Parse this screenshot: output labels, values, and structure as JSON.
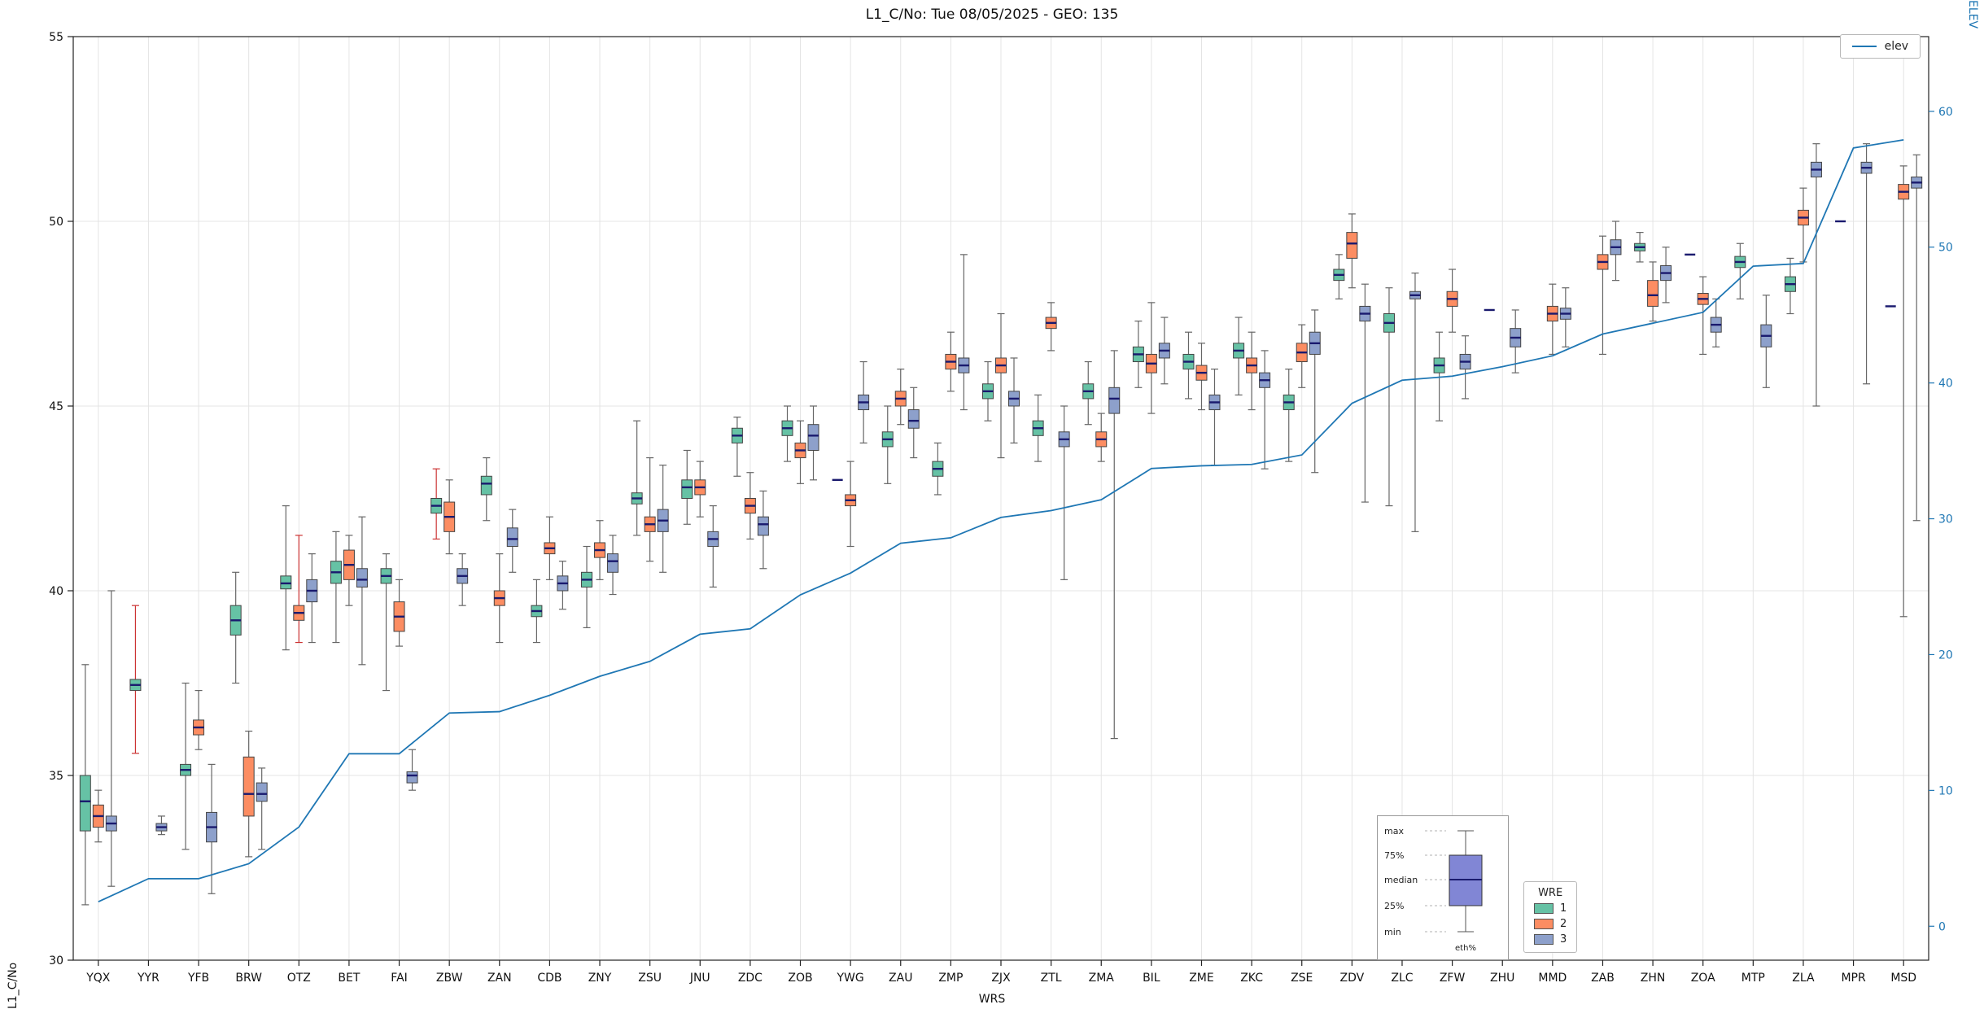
{
  "chart_data": {
    "type": "boxplot",
    "title": "L1_C/No: Tue 08/05/2025 - GEO: 135",
    "xlabel": "WRS",
    "ylabel": "L1_C/No",
    "ylabel_right": "ELEV",
    "ylim": [
      30,
      55
    ],
    "yticks": [
      30,
      35,
      40,
      45,
      50,
      55
    ],
    "ylim_right": [
      -2.5,
      65.5
    ],
    "yticks_right": [
      0,
      10,
      20,
      30,
      40,
      50,
      60
    ],
    "grid": true,
    "categories": [
      "YQX",
      "YYR",
      "YFB",
      "BRW",
      "OTZ",
      "BET",
      "FAI",
      "ZBW",
      "ZAN",
      "CDB",
      "ZNY",
      "ZSU",
      "JNU",
      "ZDC",
      "ZOB",
      "YWG",
      "ZAU",
      "ZMP",
      "ZJX",
      "ZTL",
      "ZMA",
      "BIL",
      "ZME",
      "ZKC",
      "ZSE",
      "ZDV",
      "ZLC",
      "ZFW",
      "ZHU",
      "MMD",
      "ZAB",
      "ZHN",
      "ZOA",
      "MTP",
      "ZLA",
      "MPR",
      "MSD"
    ],
    "series": [
      {
        "name": "1",
        "color": "#66c2a5",
        "boxes": [
          [
            31.5,
            33.5,
            34.3,
            35.0,
            38.0
          ],
          [
            35.6,
            37.3,
            37.45,
            37.6,
            39.6
          ],
          [
            33.0,
            35.0,
            35.15,
            35.3,
            37.5
          ],
          [
            37.5,
            38.8,
            39.2,
            39.6,
            40.5
          ],
          [
            38.4,
            40.05,
            40.2,
            40.4,
            42.3
          ],
          [
            38.6,
            40.2,
            40.5,
            40.8,
            41.6
          ],
          [
            37.3,
            40.2,
            40.4,
            40.6,
            41.0
          ],
          [
            41.4,
            42.1,
            42.3,
            42.5,
            43.3
          ],
          [
            41.9,
            42.6,
            42.9,
            43.1,
            43.6
          ],
          [
            38.6,
            39.3,
            39.45,
            39.6,
            40.3
          ],
          [
            39.0,
            40.1,
            40.3,
            40.5,
            41.2
          ],
          [
            41.5,
            42.35,
            42.5,
            42.65,
            44.6
          ],
          [
            41.8,
            42.5,
            42.8,
            43.0,
            43.8
          ],
          [
            43.1,
            44.0,
            44.2,
            44.4,
            44.7
          ],
          [
            43.5,
            44.2,
            44.4,
            44.6,
            45.0
          ],
          [
            43.0,
            43.0,
            43.0,
            43.0,
            43.0
          ],
          [
            42.9,
            43.9,
            44.1,
            44.3,
            45.0
          ],
          [
            42.6,
            43.1,
            43.3,
            43.5,
            44.0
          ],
          [
            44.6,
            45.2,
            45.4,
            45.6,
            46.2
          ],
          [
            43.5,
            44.2,
            44.4,
            44.6,
            45.3
          ],
          [
            44.5,
            45.2,
            45.4,
            45.6,
            46.2
          ],
          [
            45.5,
            46.2,
            46.4,
            46.6,
            47.3
          ],
          [
            45.2,
            46.0,
            46.2,
            46.4,
            47.0
          ],
          [
            45.3,
            46.3,
            46.5,
            46.7,
            47.4
          ],
          [
            43.5,
            44.9,
            45.1,
            45.3,
            46.0
          ],
          [
            47.9,
            48.4,
            48.55,
            48.7,
            49.1
          ],
          [
            42.3,
            47.0,
            47.25,
            47.5,
            48.2
          ],
          [
            44.6,
            45.9,
            46.1,
            46.3,
            47.0
          ],
          [
            47.6,
            47.6,
            47.6,
            47.6,
            47.6
          ],
          null,
          null,
          [
            48.9,
            49.2,
            49.3,
            49.4,
            49.7
          ],
          [
            49.1,
            49.1,
            49.1,
            49.1,
            49.1
          ],
          [
            47.9,
            48.75,
            48.9,
            49.05,
            49.4
          ],
          [
            47.5,
            48.1,
            48.3,
            48.5,
            49.0
          ],
          [
            50.0,
            50.0,
            50.0,
            50.0,
            50.0
          ],
          [
            47.7,
            47.7,
            47.7,
            47.7,
            47.7
          ]
        ]
      },
      {
        "name": "2",
        "color": "#fc8d62",
        "boxes": [
          [
            33.2,
            33.6,
            33.9,
            34.2,
            34.6
          ],
          null,
          [
            35.7,
            36.1,
            36.3,
            36.5,
            37.3
          ],
          [
            32.8,
            33.9,
            34.5,
            35.5,
            36.2
          ],
          [
            38.6,
            39.2,
            39.4,
            39.6,
            41.5
          ],
          [
            39.6,
            40.3,
            40.7,
            41.1,
            41.5
          ],
          [
            38.5,
            38.9,
            39.3,
            39.7,
            40.3
          ],
          [
            41.0,
            41.6,
            42.0,
            42.4,
            43.0
          ],
          [
            38.6,
            39.6,
            39.8,
            40.0,
            41.0
          ],
          [
            40.3,
            41.0,
            41.15,
            41.3,
            42.0
          ],
          [
            40.3,
            40.9,
            41.1,
            41.3,
            41.9
          ],
          [
            40.8,
            41.6,
            41.8,
            42.0,
            43.6
          ],
          [
            42.0,
            42.6,
            42.8,
            43.0,
            43.5
          ],
          [
            41.4,
            42.1,
            42.3,
            42.5,
            43.2
          ],
          [
            42.9,
            43.6,
            43.8,
            44.0,
            44.6
          ],
          [
            41.2,
            42.3,
            42.45,
            42.6,
            43.5
          ],
          [
            44.5,
            45.0,
            45.2,
            45.4,
            46.0
          ],
          [
            45.4,
            46.0,
            46.2,
            46.4,
            47.0
          ],
          [
            43.6,
            45.9,
            46.1,
            46.3,
            47.5
          ],
          [
            46.5,
            47.1,
            47.25,
            47.4,
            47.8
          ],
          [
            43.5,
            43.9,
            44.1,
            44.3,
            44.8
          ],
          [
            44.8,
            45.9,
            46.15,
            46.4,
            47.8
          ],
          [
            44.9,
            45.7,
            45.9,
            46.1,
            46.7
          ],
          [
            44.9,
            45.9,
            46.1,
            46.3,
            47.0
          ],
          [
            45.5,
            46.2,
            46.45,
            46.7,
            47.2
          ],
          [
            48.2,
            49.0,
            49.4,
            49.7,
            50.2
          ],
          null,
          [
            47.0,
            47.7,
            47.9,
            48.1,
            48.7
          ],
          null,
          [
            46.4,
            47.3,
            47.5,
            47.7,
            48.3
          ],
          [
            46.4,
            48.7,
            48.9,
            49.1,
            49.6
          ],
          [
            47.3,
            47.7,
            48.0,
            48.4,
            48.9
          ],
          [
            46.4,
            47.75,
            47.9,
            48.05,
            48.5
          ],
          null,
          [
            48.9,
            49.9,
            50.1,
            50.3,
            50.9
          ],
          null,
          [
            39.3,
            50.6,
            50.8,
            51.0,
            51.5
          ]
        ]
      },
      {
        "name": "3",
        "color": "#8da0cb",
        "boxes": [
          [
            32.0,
            33.5,
            33.7,
            33.9,
            40.0
          ],
          [
            33.4,
            33.5,
            33.6,
            33.7,
            33.9
          ],
          [
            31.8,
            33.2,
            33.6,
            34.0,
            35.3
          ],
          [
            33.0,
            34.3,
            34.5,
            34.8,
            35.2
          ],
          [
            38.6,
            39.7,
            40.0,
            40.3,
            41.0
          ],
          [
            38.0,
            40.1,
            40.3,
            40.6,
            42.0
          ],
          [
            34.6,
            34.8,
            35.0,
            35.1,
            35.7
          ],
          [
            39.6,
            40.2,
            40.4,
            40.6,
            41.0
          ],
          [
            40.5,
            41.2,
            41.4,
            41.7,
            42.2
          ],
          [
            39.5,
            40.0,
            40.2,
            40.4,
            40.8
          ],
          [
            39.9,
            40.5,
            40.8,
            41.0,
            41.5
          ],
          [
            40.5,
            41.6,
            41.9,
            42.2,
            43.4
          ],
          [
            40.1,
            41.2,
            41.4,
            41.6,
            42.3
          ],
          [
            40.6,
            41.5,
            41.8,
            42.0,
            42.7
          ],
          [
            43.0,
            43.8,
            44.2,
            44.5,
            45.0
          ],
          [
            44.0,
            44.9,
            45.1,
            45.3,
            46.2
          ],
          [
            43.6,
            44.4,
            44.6,
            44.9,
            45.5
          ],
          [
            44.9,
            45.9,
            46.1,
            46.3,
            49.1
          ],
          [
            44.0,
            45.0,
            45.2,
            45.4,
            46.3
          ],
          [
            40.3,
            43.9,
            44.1,
            44.3,
            45.0
          ],
          [
            36.0,
            44.8,
            45.2,
            45.5,
            46.5
          ],
          [
            45.6,
            46.3,
            46.5,
            46.7,
            47.4
          ],
          [
            43.4,
            44.9,
            45.1,
            45.3,
            46.0
          ],
          [
            43.3,
            45.5,
            45.7,
            45.9,
            46.5
          ],
          [
            43.2,
            46.4,
            46.7,
            47.0,
            47.6
          ],
          [
            42.4,
            47.3,
            47.5,
            47.7,
            48.3
          ],
          [
            41.6,
            47.9,
            48.0,
            48.1,
            48.6
          ],
          [
            45.2,
            46.0,
            46.2,
            46.4,
            46.9
          ],
          [
            45.9,
            46.6,
            46.85,
            47.1,
            47.6
          ],
          [
            46.6,
            47.35,
            47.5,
            47.65,
            48.2
          ],
          [
            48.4,
            49.1,
            49.3,
            49.5,
            50.0
          ],
          [
            47.8,
            48.4,
            48.6,
            48.8,
            49.3
          ],
          [
            46.6,
            47.0,
            47.2,
            47.4,
            47.9
          ],
          [
            45.5,
            46.6,
            46.9,
            47.2,
            48.0
          ],
          [
            45.0,
            51.2,
            51.4,
            51.6,
            52.1
          ],
          [
            45.6,
            51.3,
            51.45,
            51.6,
            52.1
          ],
          [
            41.9,
            50.9,
            51.05,
            51.2,
            51.8
          ]
        ]
      }
    ],
    "red_whiskers": [
      [
        0,
        1
      ],
      [
        1,
        4
      ],
      [
        0,
        7
      ]
    ],
    "line_series": {
      "name": "elev",
      "color": "#1f77b4",
      "values": [
        1.8,
        3.5,
        3.5,
        4.6,
        7.3,
        12.7,
        12.7,
        15.7,
        15.8,
        17.0,
        18.4,
        19.5,
        21.5,
        21.9,
        24.4,
        26.0,
        28.2,
        28.6,
        30.1,
        30.6,
        31.4,
        33.7,
        33.9,
        34.0,
        34.7,
        38.5,
        40.2,
        40.5,
        41.2,
        42.0,
        43.6,
        44.4,
        45.2,
        48.6,
        48.8,
        57.3,
        57.9
      ]
    },
    "legend_line": {
      "label": "elev",
      "position": "top-right"
    },
    "legend_box": {
      "title": "WRE",
      "entries": [
        {
          "label": "1",
          "color": "#66c2a5"
        },
        {
          "label": "2",
          "color": "#fc8d62"
        },
        {
          "label": "3",
          "color": "#8da0cb"
        }
      ]
    },
    "inset": {
      "labels": [
        "max",
        "75%",
        "median",
        "25%",
        "min"
      ],
      "bottom_label": "eth%",
      "box_color": "#8186d5"
    },
    "style": {
      "median_color": "#1a1a6e",
      "whisker_color": "#666666",
      "red_whisker_color": "#cc3333",
      "box_edge_color": "#444444",
      "grid_color": "#e4e4e4",
      "axis_color": "#222222",
      "right_axis_color": "#1f77b4"
    }
  }
}
